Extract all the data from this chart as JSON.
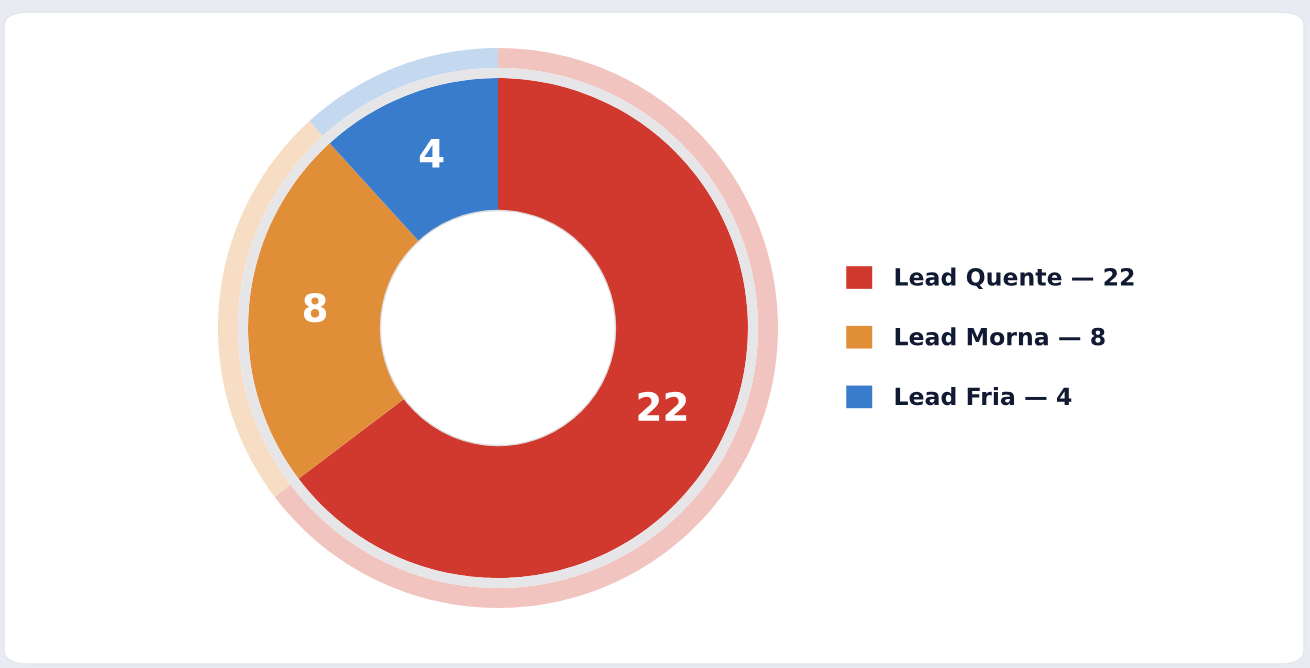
{
  "chart_data": {
    "type": "donut",
    "categories": [
      "Lead Quente — 22",
      "Lead Morna — 8",
      "Lead Fria — 4"
    ],
    "values": [
      22,
      8,
      4
    ],
    "colors": [
      "#d1392e",
      "#e08e38",
      "#3a7ccc"
    ],
    "data_labels": true,
    "legend": "right"
  }
}
